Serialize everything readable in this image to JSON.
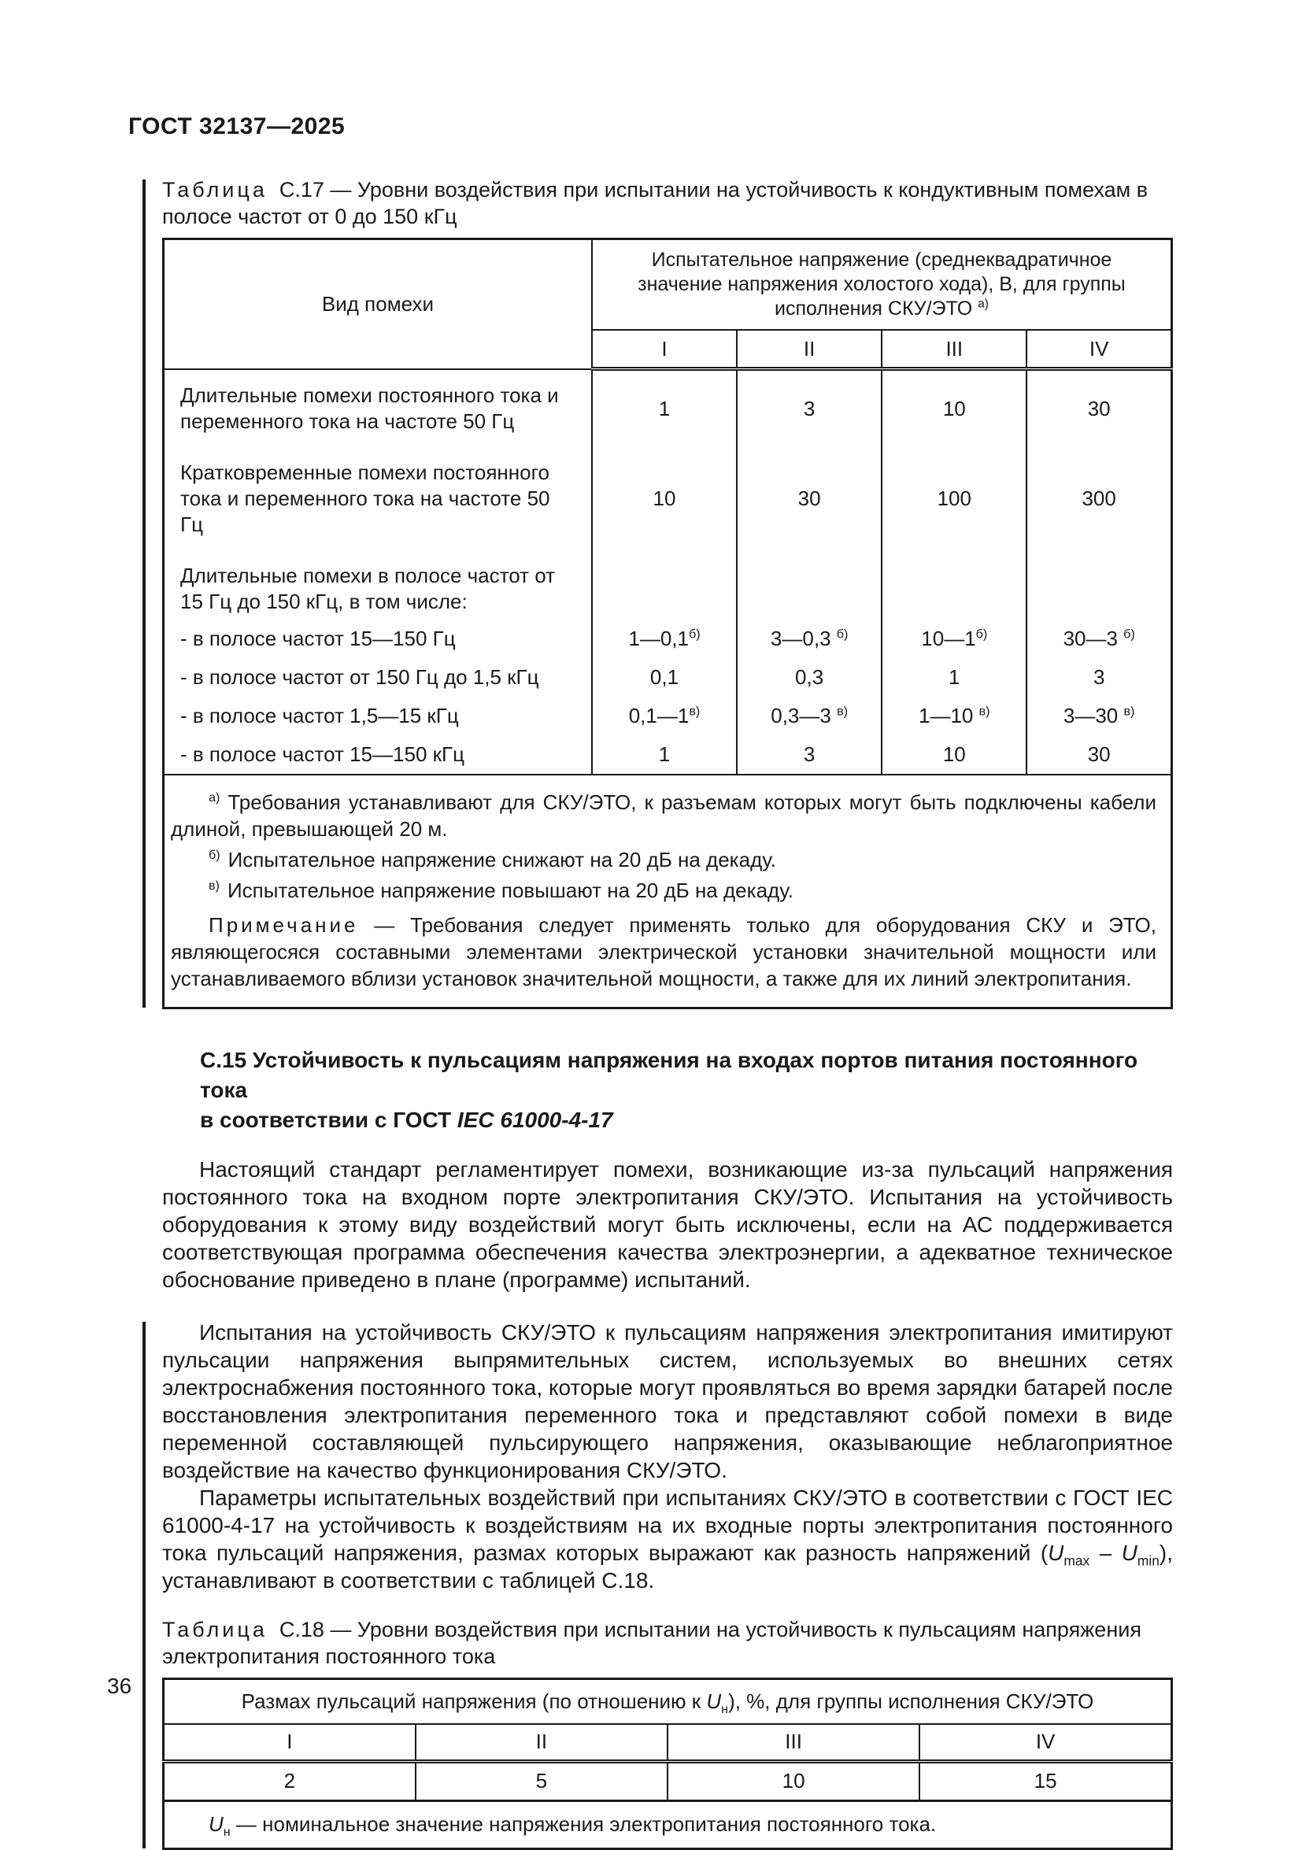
{
  "page": {
    "header": "ГОСТ 32137—2025",
    "page_number": "36"
  },
  "table_c17": {
    "caption_label": "Таблица",
    "caption_text": "С.17 — Уровни воздействия при испытании на устойчивость к кондуктивным помехам в полосе частот от 0 до 150 кГц",
    "col_type_header": "Вид помехи",
    "group_header": "Испытательное напряжение (среднеквадратичное значение напряжения холостого хода), В, для группы исполнения СКУ/ЭТО",
    "group_header_sup": "а)",
    "subcols": [
      "I",
      "II",
      "III",
      "IV"
    ],
    "rows": [
      {
        "label": "Длительные помехи постоянного тока и переменного тока на частоте 50 Гц",
        "values": [
          {
            "t": "1",
            "s": ""
          },
          {
            "t": "3",
            "s": ""
          },
          {
            "t": "10",
            "s": ""
          },
          {
            "t": "30",
            "s": ""
          }
        ]
      },
      {
        "label": "Кратковременные помехи постоянного тока и переменного тока на частоте 50 Гц",
        "values": [
          {
            "t": "10",
            "s": ""
          },
          {
            "t": "30",
            "s": ""
          },
          {
            "t": "100",
            "s": ""
          },
          {
            "t": "300",
            "s": ""
          }
        ]
      },
      {
        "label": "Длительные помехи в полосе частот от 15 Гц до 150 кГц, в том числе:",
        "values": [
          {
            "t": "",
            "s": ""
          },
          {
            "t": "",
            "s": ""
          },
          {
            "t": "",
            "s": ""
          },
          {
            "t": "",
            "s": ""
          }
        ]
      },
      {
        "label": "- в полосе частот 15—150 Гц",
        "values": [
          {
            "t": "1—0,1",
            "s": "б)"
          },
          {
            "t": "3—0,3 ",
            "s": "б)"
          },
          {
            "t": "10—1",
            "s": "б)"
          },
          {
            "t": "30—3 ",
            "s": "б)"
          }
        ]
      },
      {
        "label": "- в полосе частот от 150 Гц до 1,5 кГц",
        "values": [
          {
            "t": "0,1",
            "s": ""
          },
          {
            "t": "0,3",
            "s": ""
          },
          {
            "t": "1",
            "s": ""
          },
          {
            "t": "3",
            "s": ""
          }
        ]
      },
      {
        "label": "- в полосе частот 1,5—15 кГц",
        "values": [
          {
            "t": "0,1—1",
            "s": "в)"
          },
          {
            "t": "0,3—3 ",
            "s": "в)"
          },
          {
            "t": "1—10 ",
            "s": "в)"
          },
          {
            "t": "3—30 ",
            "s": "в)"
          }
        ]
      },
      {
        "label": "- в полосе частот 15—150 кГц",
        "values": [
          {
            "t": "1",
            "s": ""
          },
          {
            "t": "3",
            "s": ""
          },
          {
            "t": "10",
            "s": ""
          },
          {
            "t": "30",
            "s": ""
          }
        ]
      }
    ],
    "footnotes": [
      {
        "mark": "а)",
        "text": "Требования устанавливают для СКУ/ЭТО, к разъемам которых могут быть подключены кабели длиной, превышающей 20 м."
      },
      {
        "mark": "б)",
        "text": "Испытательное напряжение снижают на 20 дБ на декаду."
      },
      {
        "mark": "в)",
        "text": "Испытательное напряжение повышают на 20 дБ на декаду."
      }
    ],
    "note_label": "Примечание",
    "note_text": "— Требования следует применять только для оборудования СКУ и ЭТО, являющегося­ся составными элементами электрической установки значительной мощности или устанавливаемого вблизи установок значительной мощности, а также для их линий электропитания."
  },
  "section": {
    "heading_line1": "С.15 Устойчивость к пульсациям напряжения на входах портов питания постоянного тока",
    "heading_line2_text": "в соответствии с ГОСТ ",
    "heading_line2_ref": "IEC 61000-4-17",
    "para1": "Настоящий стандарт регламентирует помехи, возникающие из-за пульсаций напряжения постоянного тока на входном порте электропитания СКУ/ЭТО. Испытания на устойчивость оборудования к этому виду воздействий могут быть исключены, если на АС поддерживается соответствующая программа обеспечения качества электроэнергии, а адекватное техническое обоснование приведено в плане (программе) испытаний.",
    "para2": "Испытания на устойчивость СКУ/ЭТО к пульсациям напряжения электропитания имитируют пульсации напряжения выпрямительных систем, используемых во внешних сетях электроснабжения постоянного тока, которые могут проявляться во время зарядки батарей после восстановления электропитания переменного тока и представляют собой помехи в виде переменной составляющей пульсирующего напряжения, оказывающие неблагоприятное воздействие на качество функционирования СКУ/ЭТО.",
    "para3_before": "Параметры испытательных воздействий при испытаниях СКУ/ЭТО в соответствии с ГОСТ IEC 61000-4-17 на устойчивость к воздействиям на их входные порты электропитания постоянного тока пульсаций напряжения, размах которых выражают как разность напряжений (",
    "formula_u1": "U",
    "formula_sub1": "max",
    "formula_minus": " – ",
    "formula_u2": "U",
    "formula_sub2": "min",
    "para3_after": "), устанавливают в соответствии с таблицей С.18."
  },
  "table_c18": {
    "caption_label": "Таблица",
    "caption_text": "С.18 — Уровни воздействия при испытании на устойчивость к пульсациям напряжения электропитания постоянного тока",
    "header_before": "Размах пульсаций напряжения (по отношению к ",
    "header_u": "U",
    "header_u_sub": "н",
    "header_after": "), %, для группы исполнения СКУ/ЭТО",
    "subcols": [
      "I",
      "II",
      "III",
      "IV"
    ],
    "values": [
      "2",
      "5",
      "10",
      "15"
    ],
    "footer_u": "U",
    "footer_u_sub": "н",
    "footer_text": " — номинальное значение напряжения электропитания постоянного тока."
  }
}
